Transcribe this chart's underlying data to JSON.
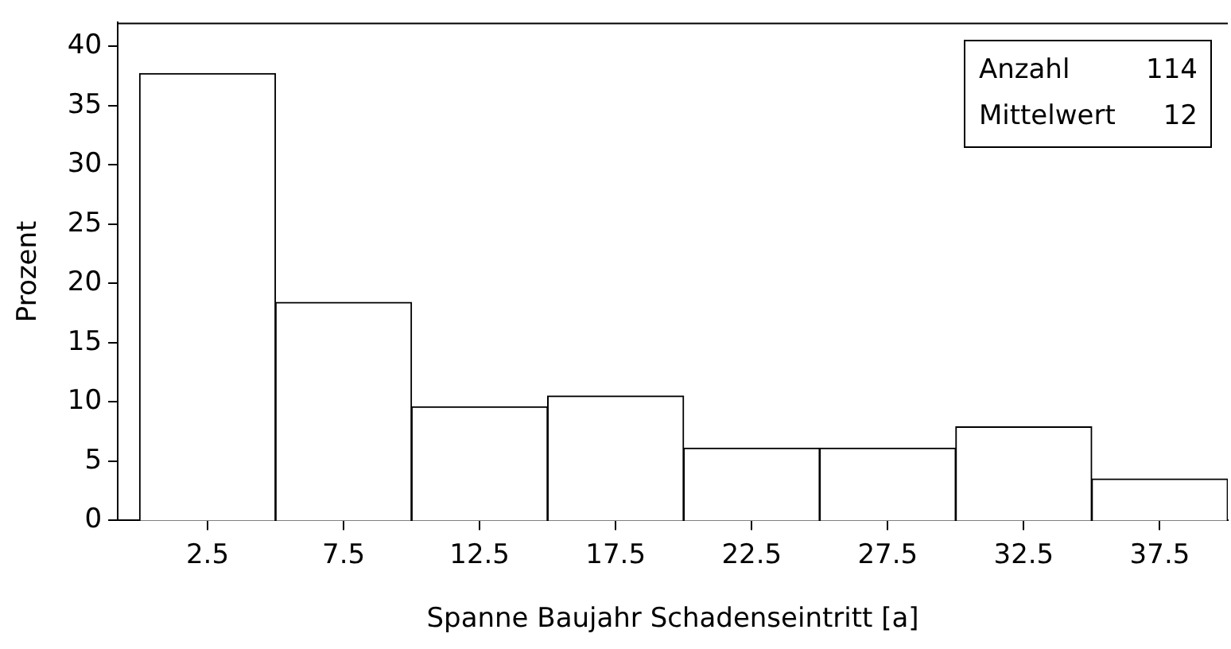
{
  "chart_data": {
    "type": "histogram",
    "xlabel": "Spanne Baujahr Schadenseintritt [a]",
    "ylabel": "Prozent",
    "bins": [
      0,
      5,
      10,
      15,
      20,
      25,
      30,
      35,
      40
    ],
    "values": [
      37.7,
      18.4,
      9.6,
      10.5,
      6.1,
      6.1,
      7.9,
      3.5
    ],
    "color": "#ffffff",
    "xlim": [
      -0.8,
      40
    ],
    "xticks": [
      2.5,
      7.5,
      12.5,
      17.5,
      22.5,
      27.5,
      32.5,
      37.5
    ],
    "ylim": [
      0,
      42
    ],
    "yticks": [
      0,
      5,
      10,
      15,
      20,
      25,
      30,
      35,
      40
    ],
    "grid": false,
    "legend": false,
    "annotations": [
      "Anzahl 114",
      "Mittelwert 12"
    ]
  }
}
